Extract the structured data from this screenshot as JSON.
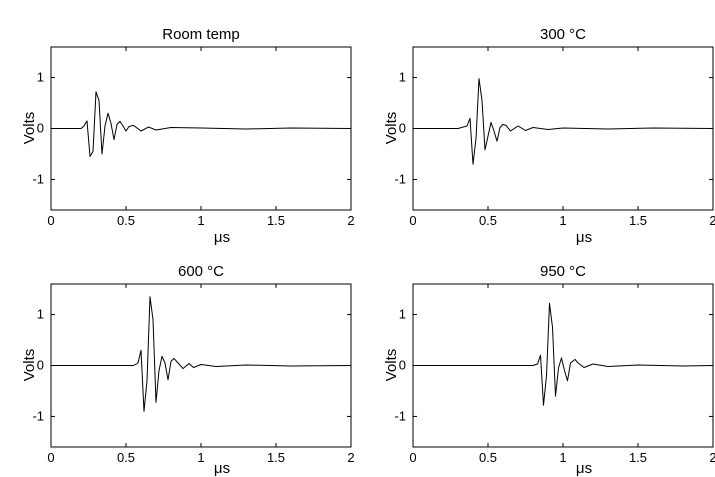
{
  "chart_data": [
    {
      "type": "line",
      "title": "Room temp",
      "xlabel": "μs",
      "ylabel": "Volts",
      "xlim": [
        0,
        2
      ],
      "ylim": [
        -1.6,
        1.6
      ],
      "xticks": [
        0,
        0.5,
        1,
        1.5,
        2
      ],
      "xtick_labels": [
        "0",
        "0.5",
        "1",
        "1.5",
        "2"
      ],
      "yticks": [
        1,
        0,
        -1
      ],
      "ytick_labels": [
        "1",
        "0",
        "-1"
      ],
      "grid": false,
      "series": [
        {
          "color": "#000000",
          "x": [
            0,
            0.2,
            0.22,
            0.24,
            0.26,
            0.28,
            0.3,
            0.32,
            0.34,
            0.36,
            0.38,
            0.4,
            0.42,
            0.44,
            0.46,
            0.48,
            0.5,
            0.52,
            0.55,
            0.6,
            0.65,
            0.7,
            0.8,
            1.0,
            1.3,
            1.6,
            2
          ],
          "y": [
            0,
            0,
            0.05,
            0.15,
            -0.55,
            -0.45,
            0.72,
            0.55,
            -0.5,
            0.05,
            0.3,
            0.1,
            -0.22,
            0.08,
            0.14,
            0.05,
            -0.05,
            0.04,
            0.06,
            -0.05,
            0.03,
            -0.03,
            0.02,
            0.01,
            -0.01,
            0.01,
            0
          ]
        }
      ]
    },
    {
      "type": "line",
      "title": "300 °C",
      "xlabel": "μs",
      "ylabel": "Volts",
      "xlim": [
        0,
        2
      ],
      "ylim": [
        -1.6,
        1.6
      ],
      "xticks": [
        0,
        0.5,
        1,
        1.5,
        2
      ],
      "xtick_labels": [
        "0",
        "0.5",
        "1",
        "1.5",
        "2"
      ],
      "yticks": [
        1,
        0,
        -1
      ],
      "ytick_labels": [
        "1",
        "0",
        "-1"
      ],
      "grid": false,
      "series": [
        {
          "color": "#000000",
          "x": [
            0,
            0.3,
            0.36,
            0.38,
            0.4,
            0.42,
            0.44,
            0.46,
            0.48,
            0.5,
            0.52,
            0.54,
            0.56,
            0.58,
            0.6,
            0.62,
            0.65,
            0.7,
            0.75,
            0.8,
            0.9,
            1.0,
            1.3,
            1.6,
            2
          ],
          "y": [
            0,
            0,
            0.05,
            0.2,
            -0.7,
            -0.2,
            0.98,
            0.55,
            -0.42,
            -0.15,
            0.12,
            -0.05,
            -0.25,
            0.02,
            0.08,
            0.06,
            -0.05,
            0.05,
            -0.04,
            0.02,
            -0.02,
            0.01,
            -0.01,
            0.01,
            0
          ]
        }
      ]
    },
    {
      "type": "line",
      "title": "600 °C",
      "xlabel": "μs",
      "ylabel": "Volts",
      "xlim": [
        0,
        2
      ],
      "ylim": [
        -1.6,
        1.6
      ],
      "xticks": [
        0,
        0.5,
        1,
        1.5,
        2
      ],
      "xtick_labels": [
        "0",
        "0.5",
        "1",
        "1.5",
        "2"
      ],
      "yticks": [
        1,
        0,
        -1
      ],
      "ytick_labels": [
        "1",
        "0",
        "-1"
      ],
      "grid": false,
      "series": [
        {
          "color": "#000000",
          "x": [
            0,
            0.55,
            0.58,
            0.6,
            0.62,
            0.64,
            0.66,
            0.68,
            0.7,
            0.72,
            0.74,
            0.76,
            0.78,
            0.8,
            0.82,
            0.85,
            0.88,
            0.92,
            0.95,
            1.0,
            1.1,
            1.3,
            1.6,
            2
          ],
          "y": [
            0,
            0,
            0.05,
            0.3,
            -0.9,
            -0.3,
            1.35,
            0.9,
            -0.72,
            -0.1,
            0.18,
            0.05,
            -0.28,
            0.08,
            0.14,
            0.04,
            -0.06,
            0.04,
            -0.04,
            0.02,
            -0.02,
            0.01,
            -0.01,
            0
          ]
        }
      ]
    },
    {
      "type": "line",
      "title": "950 °C",
      "xlabel": "μs",
      "ylabel": "Volts",
      "xlim": [
        0,
        2
      ],
      "ylim": [
        -1.6,
        1.6
      ],
      "xticks": [
        0,
        0.5,
        1,
        1.5,
        2
      ],
      "xtick_labels": [
        "0",
        "0.5",
        "1",
        "1.5",
        "2"
      ],
      "yticks": [
        1,
        0,
        -1
      ],
      "ytick_labels": [
        "1",
        "0",
        "-1"
      ],
      "grid": false,
      "series": [
        {
          "color": "#000000",
          "x": [
            0,
            0.8,
            0.83,
            0.85,
            0.87,
            0.89,
            0.91,
            0.93,
            0.95,
            0.97,
            0.99,
            1.01,
            1.03,
            1.05,
            1.08,
            1.1,
            1.14,
            1.2,
            1.3,
            1.5,
            1.8,
            2
          ],
          "y": [
            0,
            0,
            0.03,
            0.2,
            -0.78,
            -0.2,
            1.22,
            0.75,
            -0.6,
            -0.05,
            0.15,
            -0.1,
            -0.3,
            0.05,
            0.12,
            0.05,
            -0.04,
            0.03,
            -0.02,
            0.01,
            -0.01,
            0
          ]
        }
      ]
    }
  ]
}
